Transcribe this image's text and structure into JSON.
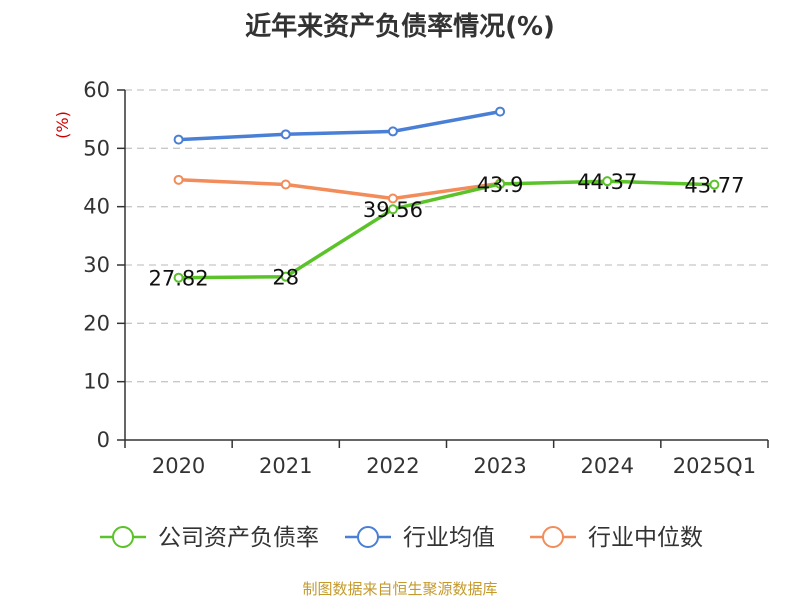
{
  "title": "近年来资产负债率情况(%)",
  "footer": "制图数据来自恒生聚源数据库",
  "chart_data": {
    "type": "line",
    "title": "近年来资产负债率情况(%)",
    "ylabel": "(%)",
    "xlabel": "",
    "categories": [
      "2020",
      "2021",
      "2022",
      "2023",
      "2024",
      "2025Q1"
    ],
    "ylim": [
      0,
      60
    ],
    "yticks": [
      0,
      10,
      20,
      30,
      40,
      50,
      60
    ],
    "grid": true,
    "legend_position": "bottom",
    "series": [
      {
        "name": "公司资产负债率",
        "color": "#5bc22a",
        "values": [
          27.82,
          28,
          39.56,
          43.9,
          44.37,
          43.77
        ],
        "labels": [
          "27.82",
          "28",
          "39.56",
          "43.9",
          "44.37",
          "43.77"
        ]
      },
      {
        "name": "行业均值",
        "color": "#4a7fd6",
        "values": [
          51.5,
          52.4,
          52.9,
          56.3,
          null,
          null
        ]
      },
      {
        "name": "行业中位数",
        "color": "#f28c5a",
        "values": [
          44.6,
          43.8,
          41.4,
          44.0,
          null,
          null
        ]
      }
    ]
  }
}
